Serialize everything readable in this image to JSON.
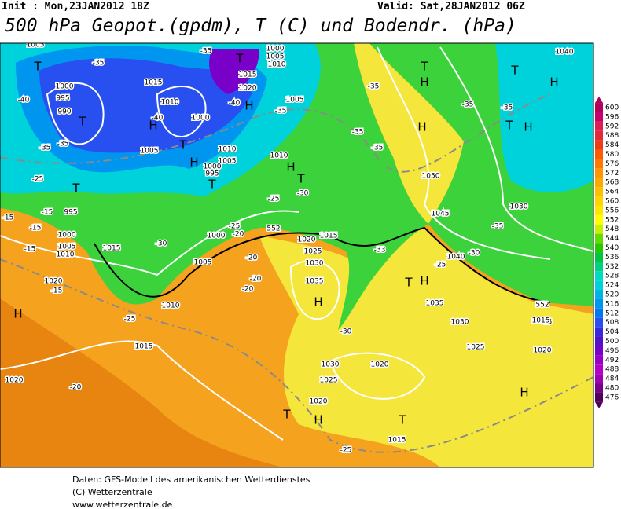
{
  "header": {
    "init": "Init : Mon,23JAN2012 18Z",
    "valid": "Valid: Sat,28JAN2012 06Z",
    "title": "500 hPa Geopot.(gpdm), T (C) und Bodendr. (hPa)"
  },
  "footer": [
    "Daten: GFS-Modell des amerikanischen Wetterdienstes",
    "(C) Wetterzentrale",
    "www.wetterzentrale.de"
  ],
  "colorbar": {
    "levels": [
      600,
      596,
      592,
      588,
      584,
      580,
      576,
      572,
      568,
      564,
      560,
      556,
      552,
      548,
      544,
      540,
      536,
      532,
      528,
      524,
      520,
      516,
      512,
      508,
      504,
      500,
      496,
      492,
      488,
      484,
      480,
      476
    ],
    "colors": [
      "#b4005a",
      "#c8006e",
      "#dc1e50",
      "#e6283c",
      "#f03c14",
      "#ff5a00",
      "#ff7800",
      "#ff9600",
      "#ffaa00",
      "#ffbe00",
      "#ffd200",
      "#ffe600",
      "#ffff00",
      "#c8f000",
      "#64dc00",
      "#28c800",
      "#00c83c",
      "#00d282",
      "#00dcbe",
      "#00d2dc",
      "#00b4e6",
      "#0096f0",
      "#0078f0",
      "#2850f0",
      "#3c28dc",
      "#5014c8",
      "#7800c8",
      "#9600c8",
      "#b400c8",
      "#a000b4",
      "#78008c",
      "#50005a"
    ]
  },
  "map_labels": [
    "1005",
    "T",
    "-35",
    "1015",
    "-35",
    "T",
    "1000",
    "1005",
    "1010",
    "1000",
    "995",
    "990",
    "-40",
    "T",
    "-35",
    "-35",
    "1005",
    "H",
    "-40",
    "T",
    "1000",
    "1015",
    "1020",
    "-40",
    "H",
    "1010",
    "1005",
    "1010",
    "H",
    "1000",
    "995",
    "T",
    "1005",
    "-35",
    "1010",
    "H",
    "T",
    "-30",
    "-25",
    "-25",
    "T",
    "-15",
    "995",
    "-15",
    "-15",
    "1000",
    "1005",
    "1010",
    "-15",
    "1015",
    "-30",
    "1000",
    "-25",
    "-20",
    "1005",
    "1020",
    "-15",
    "H",
    "1010",
    "-25",
    "1015",
    "1020",
    "-20",
    "-20",
    "-20",
    "-20",
    "1020",
    "1015",
    "1025",
    "1030",
    "1035",
    "H",
    "-30",
    "1030",
    "1025",
    "1020",
    "T",
    "H",
    "1020",
    "T",
    "1015",
    "-25",
    "T",
    "H",
    "-35",
    "-35",
    "H",
    "-35",
    "1050",
    "1045",
    "-30",
    "1040",
    "-25",
    "T",
    "H",
    "1035",
    "1030",
    "1025",
    "1020",
    "-15",
    "1015",
    "H",
    "-35",
    "-35",
    "T",
    "H",
    "H",
    "T",
    "1040",
    "1030",
    "-35",
    "-33",
    "552",
    "552"
  ]
}
